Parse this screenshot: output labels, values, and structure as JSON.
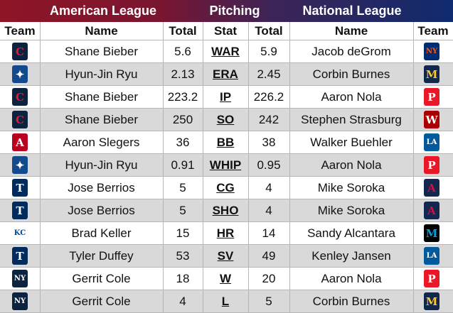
{
  "header": {
    "american_league": "American League",
    "category": "Pitching",
    "national_league": "National League"
  },
  "columns": {
    "team_left": "Team",
    "name_left": "Name",
    "total_left": "Total",
    "stat": "Stat",
    "total_right": "Total",
    "name_right": "Name",
    "team_right": "Team"
  },
  "rows": [
    {
      "al_team": "cleveland-logo",
      "al_name": "Shane Bieber",
      "al_total": "5.6",
      "stat": "WAR",
      "nl_total": "5.9",
      "nl_name": "Jacob deGrom",
      "nl_team": "mets-logo"
    },
    {
      "al_team": "blue-jays-logo",
      "al_name": "Hyun-Jin Ryu",
      "al_total": "2.13",
      "stat": "ERA",
      "nl_total": "2.45",
      "nl_name": "Corbin Burnes",
      "nl_team": "brewers-logo"
    },
    {
      "al_team": "cleveland-logo",
      "al_name": "Shane Bieber",
      "al_total": "223.2",
      "stat": "IP",
      "nl_total": "226.2",
      "nl_name": "Aaron Nola",
      "nl_team": "phillies-logo"
    },
    {
      "al_team": "cleveland-logo",
      "al_name": "Shane Bieber",
      "al_total": "250",
      "stat": "SO",
      "nl_total": "242",
      "nl_name": "Stephen Strasburg",
      "nl_team": "nationals-logo"
    },
    {
      "al_team": "angels-logo",
      "al_name": "Aaron Slegers",
      "al_total": "36",
      "stat": "BB",
      "nl_total": "38",
      "nl_name": "Walker Buehler",
      "nl_team": "dodgers-logo"
    },
    {
      "al_team": "blue-jays-logo",
      "al_name": "Hyun-Jin Ryu",
      "al_total": "0.91",
      "stat": "WHIP",
      "nl_total": "0.95",
      "nl_name": "Aaron Nola",
      "nl_team": "phillies-logo"
    },
    {
      "al_team": "twins-logo",
      "al_name": "Jose Berrios",
      "al_total": "5",
      "stat": "CG",
      "nl_total": "4",
      "nl_name": "Mike Soroka",
      "nl_team": "braves-logo"
    },
    {
      "al_team": "twins-logo",
      "al_name": "Jose Berrios",
      "al_total": "5",
      "stat": "SHO",
      "nl_total": "4",
      "nl_name": "Mike Soroka",
      "nl_team": "braves-logo"
    },
    {
      "al_team": "royals-logo",
      "al_name": "Brad Keller",
      "al_total": "15",
      "stat": "HR",
      "nl_total": "14",
      "nl_name": "Sandy Alcantara",
      "nl_team": "marlins-logo"
    },
    {
      "al_team": "twins-logo",
      "al_name": "Tyler Duffey",
      "al_total": "53",
      "stat": "SV",
      "nl_total": "49",
      "nl_name": "Kenley Jansen",
      "nl_team": "dodgers-logo"
    },
    {
      "al_team": "yankees-logo",
      "al_name": "Gerrit Cole",
      "al_total": "18",
      "stat": "W",
      "nl_total": "20",
      "nl_name": "Aaron Nola",
      "nl_team": "phillies-logo"
    },
    {
      "al_team": "yankees-logo",
      "al_name": "Gerrit Cole",
      "al_total": "4",
      "stat": "L",
      "nl_total": "5",
      "nl_name": "Corbin Burnes",
      "nl_team": "brewers-logo"
    }
  ],
  "colors": {
    "al_red": "#8e1526",
    "nl_blue": "#0f2b6e",
    "alt_row": "#d9d9d9"
  }
}
